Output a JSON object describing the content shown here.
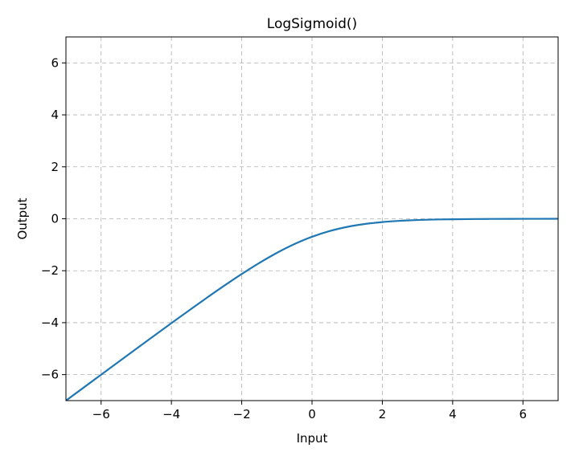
{
  "chart_data": {
    "type": "line",
    "title": "LogSigmoid()",
    "xlabel": "Input",
    "ylabel": "Output",
    "xlim": [
      -7,
      7
    ],
    "ylim": [
      -7,
      7
    ],
    "grid": true,
    "grid_style": "dashed",
    "x_ticks": [
      -6,
      -4,
      -2,
      0,
      2,
      4,
      6
    ],
    "y_ticks": [
      -6,
      -4,
      -2,
      0,
      2,
      4,
      6
    ],
    "x_tick_labels": [
      "−6",
      "−4",
      "−2",
      "0",
      "2",
      "4",
      "6"
    ],
    "y_tick_labels": [
      "−6",
      "−4",
      "−2",
      "0",
      "2",
      "4",
      "6"
    ],
    "series": [
      {
        "color": "#1f77b4",
        "x": [
          -7,
          -6,
          -5,
          -4,
          -3.5,
          -3,
          -2.5,
          -2,
          -1.5,
          -1,
          -0.5,
          0,
          0.5,
          1,
          1.5,
          2,
          2.5,
          3,
          3.5,
          4,
          5,
          6,
          7
        ],
        "y": [
          -7.0009,
          -6.0025,
          -5.0067,
          -4.0181,
          -3.5297,
          -3.0486,
          -2.5789,
          -2.1269,
          -1.7014,
          -1.3133,
          -0.9741,
          -0.6931,
          -0.4741,
          -0.3133,
          -0.2014,
          -0.1269,
          -0.0789,
          -0.0486,
          -0.0297,
          -0.0181,
          -0.0067,
          -0.0025,
          -0.0009
        ]
      }
    ]
  }
}
